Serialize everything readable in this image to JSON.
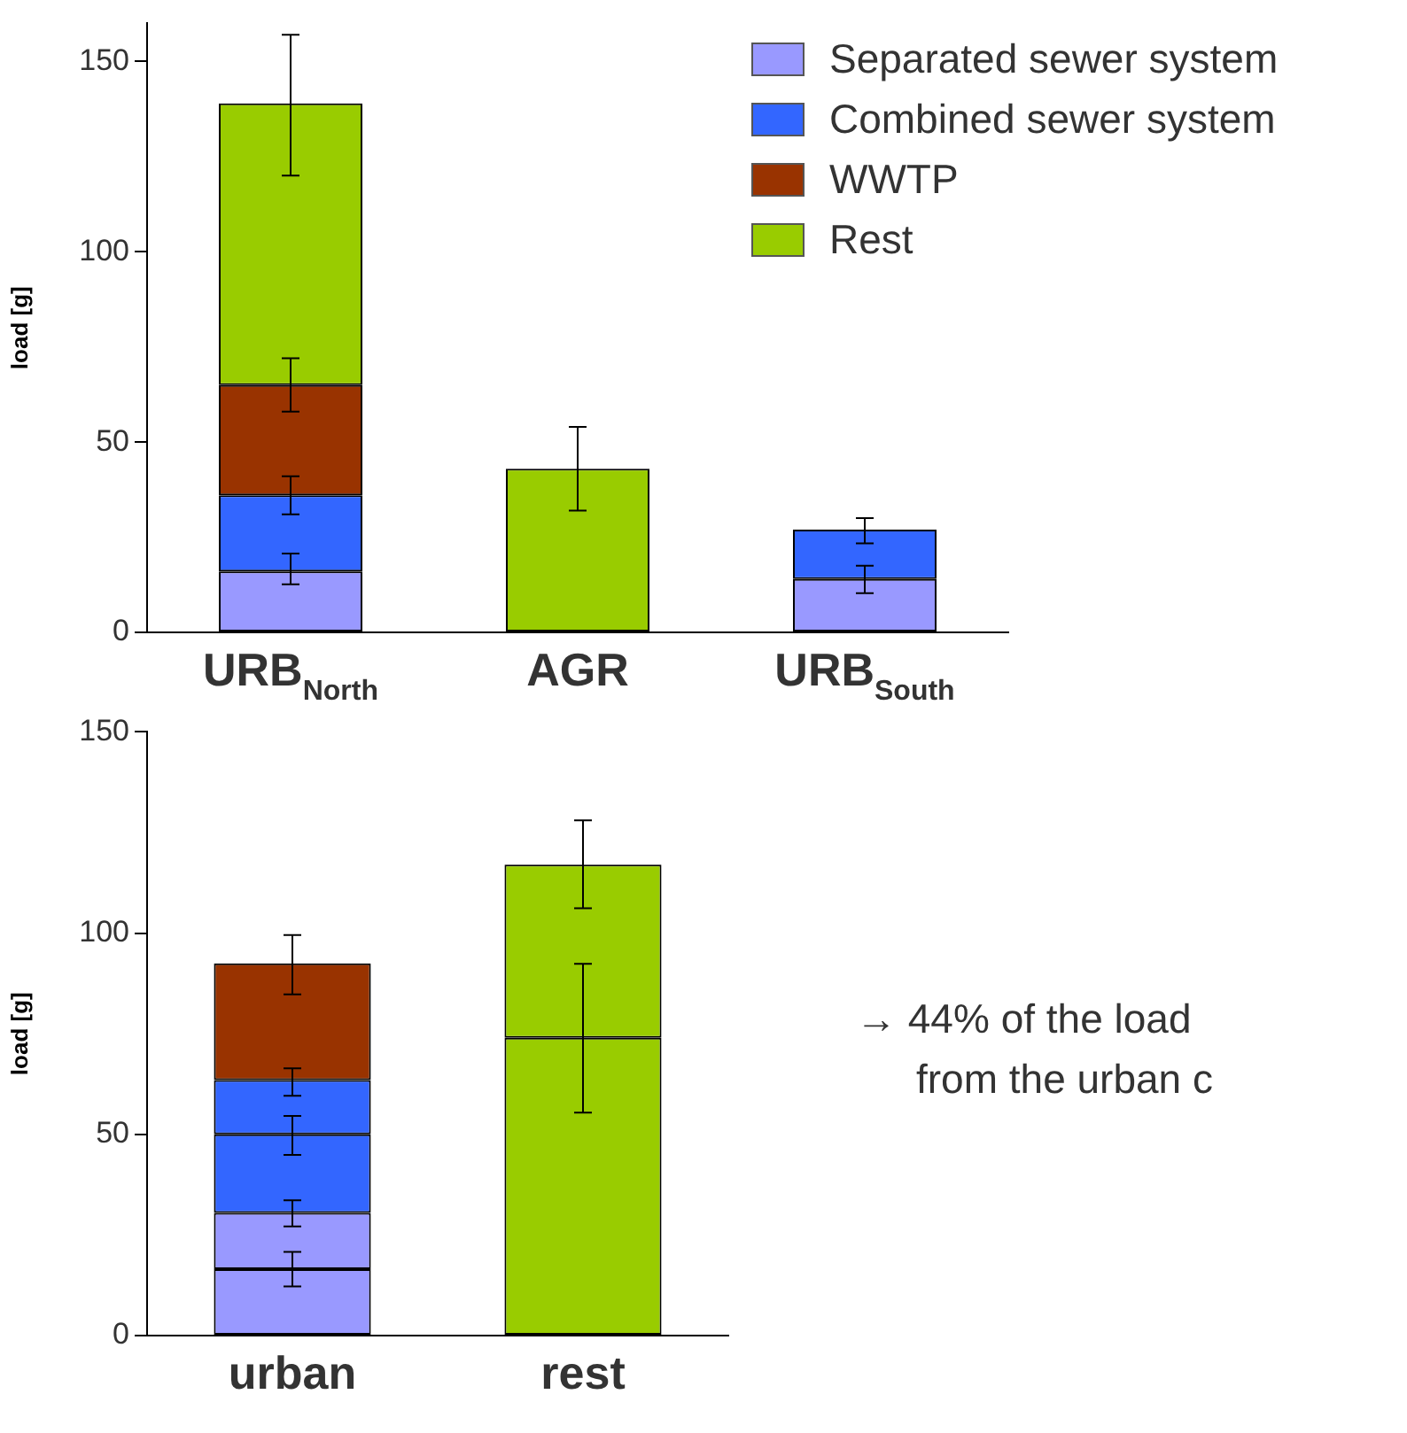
{
  "chart_data": [
    {
      "type": "bar",
      "ylabel": "load [g]",
      "categories": [
        "URB$_{North}$",
        "AGR",
        "URB$_{South}$"
      ],
      "stacked": true,
      "ylim": [
        0,
        160
      ],
      "yticks": [
        0,
        50,
        100,
        150
      ],
      "grid": false,
      "legend": "top right",
      "series": [
        {
          "name": "Separated sewer system",
          "color": "#9999ff",
          "values": [
            16,
            null,
            14
          ],
          "errors": [
            [
              12.6,
              20.7
            ],
            null,
            [
              10.3,
              17.5
            ]
          ]
        },
        {
          "name": "Combined sewer system",
          "color": "#3366ff",
          "values": [
            20,
            null,
            13
          ],
          "errors": [
            [
              31,
              41
            ],
            null,
            [
              23.4,
              30
            ]
          ]
        },
        {
          "name": "WWTP",
          "color": "#993300",
          "values": [
            29,
            null,
            null
          ],
          "errors": [
            [
              58,
              72
            ],
            null,
            null
          ]
        },
        {
          "name": "Rest",
          "color": "#99cc00",
          "values": [
            74,
            43,
            null
          ],
          "errors": [
            [
              120,
              157
            ],
            [
              32,
              54
            ],
            null
          ]
        }
      ]
    },
    {
      "type": "bar",
      "ylabel": "load [g]",
      "categories": [
        "urban",
        "rest"
      ],
      "stacked": true,
      "ylim": [
        0,
        150
      ],
      "yticks": [
        0,
        50,
        100,
        150
      ],
      "grid": false,
      "legend": false,
      "annotations": [
        "→ 44% of the load",
        "from the urban c"
      ],
      "series": [
        {
          "color": "#9999ff",
          "values": [
            16.5,
            null
          ],
          "errors": [
            [
              12.2,
              20.8
            ],
            null
          ]
        },
        {
          "color": "#9999ff",
          "values": [
            14,
            null
          ],
          "errors": [
            [
              27.1,
              33.6
            ],
            null
          ]
        },
        {
          "color": "#3366ff",
          "values": [
            19.5,
            null
          ],
          "errors": [
            [
              44.9,
              54.6
            ],
            null
          ]
        },
        {
          "color": "#3366ff",
          "values": [
            13.5,
            null
          ],
          "errors": [
            [
              59.6,
              66.4
            ],
            null
          ]
        },
        {
          "color": "#993300",
          "values": [
            29,
            null
          ],
          "errors": [
            [
              84.8,
              99.5
            ],
            null
          ]
        },
        {
          "color": "#99cc00",
          "values": [
            null,
            74
          ],
          "errors": [
            null,
            [
              55.4,
              92.4
            ]
          ]
        },
        {
          "color": "#99cc00",
          "values": [
            null,
            43
          ],
          "errors": [
            null,
            [
              106.2,
              128
            ]
          ]
        }
      ]
    }
  ]
}
